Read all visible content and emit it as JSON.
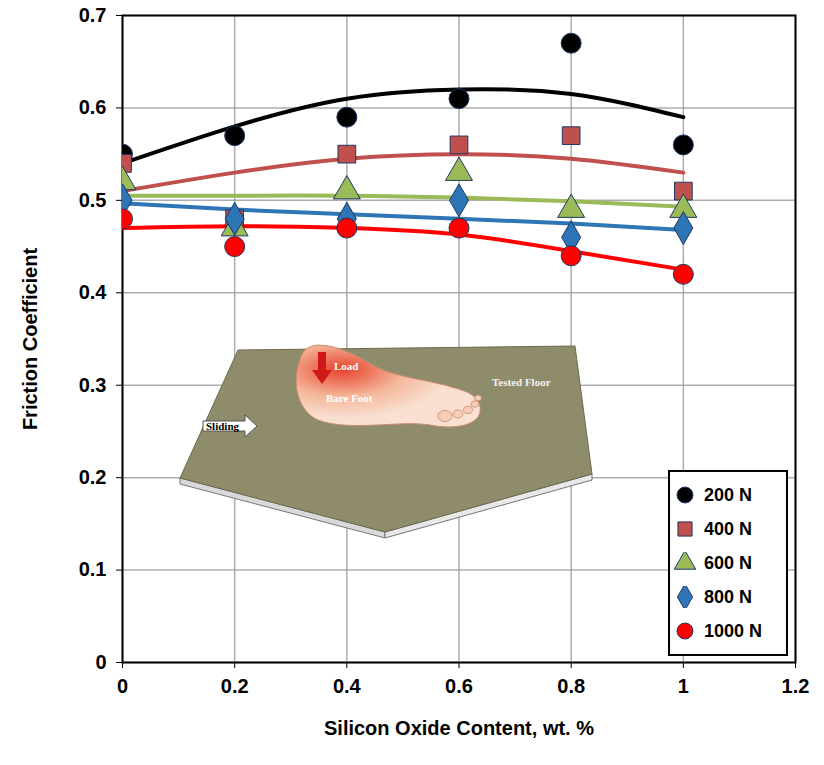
{
  "chart_data": {
    "type": "scatter",
    "x_label": "Silicon Oxide Content, wt. %",
    "y_label": "Friction Coefficient",
    "x": [
      0,
      0.2,
      0.4,
      0.6,
      0.8,
      1
    ],
    "series": [
      {
        "name": "200 N",
        "color": "#000000",
        "marker": "circle",
        "values": [
          0.55,
          0.57,
          0.59,
          0.61,
          0.67,
          0.56
        ],
        "trend": [
          0.54,
          0.58,
          0.61,
          0.62,
          0.615,
          0.59
        ]
      },
      {
        "name": "400 N",
        "color": "#c0504d",
        "marker": "square",
        "values": [
          0.54,
          0.48,
          0.55,
          0.56,
          0.57,
          0.51
        ],
        "trend": [
          0.51,
          0.53,
          0.545,
          0.55,
          0.545,
          0.53
        ]
      },
      {
        "name": "600 N",
        "color": "#9bbb59",
        "marker": "triangle",
        "values": [
          0.52,
          0.47,
          0.51,
          0.53,
          0.49,
          0.49
        ],
        "trend": [
          0.505,
          0.505,
          0.505,
          0.503,
          0.499,
          0.493
        ]
      },
      {
        "name": "800 N",
        "color": "#2e75b6",
        "marker": "diamond",
        "values": [
          0.5,
          0.48,
          0.48,
          0.5,
          0.46,
          0.47
        ],
        "trend": [
          0.497,
          0.49,
          0.485,
          0.48,
          0.475,
          0.468
        ]
      },
      {
        "name": "1000 N",
        "color": "#ff0000",
        "marker": "circle",
        "values": [
          0.48,
          0.45,
          0.47,
          0.47,
          0.44,
          0.42
        ],
        "trend": [
          0.47,
          0.472,
          0.47,
          0.463,
          0.445,
          0.425
        ]
      }
    ],
    "xlim": [
      0,
      1.2
    ],
    "xticks": [
      0,
      0.2,
      0.4,
      0.6,
      0.8,
      1,
      1.2
    ],
    "ylim": [
      0,
      0.7
    ],
    "yticks": [
      0,
      0.1,
      0.2,
      0.3,
      0.4,
      0.5,
      0.6,
      0.7
    ],
    "grid": true,
    "legend": "bottom-right",
    "annotations": [
      "Load",
      "Bare Foot",
      "Tested Floor",
      "Sliding"
    ]
  }
}
